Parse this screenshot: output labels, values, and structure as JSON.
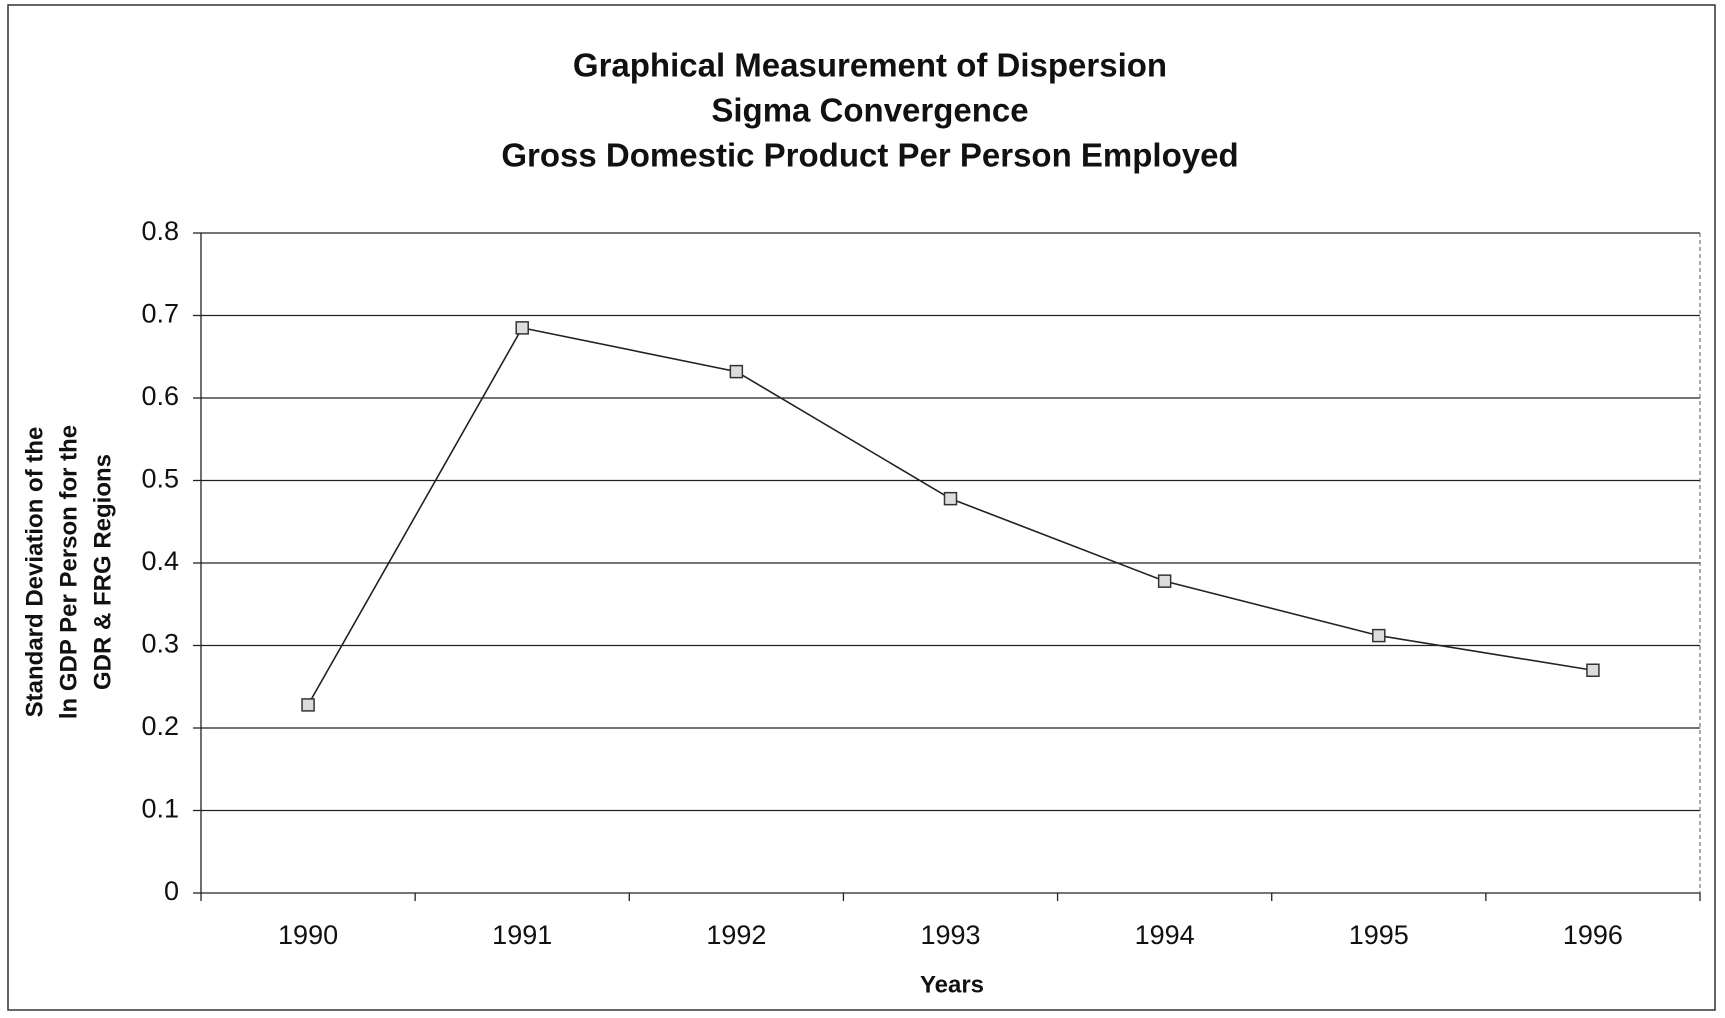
{
  "chart_data": {
    "type": "line",
    "title": [
      "Graphical Measurement of Dispersion",
      "Sigma Convergence",
      "Gross Domestic Product Per Person Employed"
    ],
    "y_label": [
      "Standard Deviation of the",
      "ln GDP Per Person for the",
      "GDR & FRG Regions"
    ],
    "x_label": "Years",
    "categories": [
      "1990",
      "1991",
      "1992",
      "1993",
      "1994",
      "1995",
      "1996"
    ],
    "values": [
      0.228,
      0.685,
      0.632,
      0.478,
      0.378,
      0.312,
      0.27
    ],
    "color": "#222222",
    "ylim": [
      0,
      0.8
    ],
    "yticks": [
      0,
      0.1,
      0.2,
      0.3,
      0.4,
      0.5,
      0.6,
      0.7,
      0.8
    ],
    "grid": true
  }
}
